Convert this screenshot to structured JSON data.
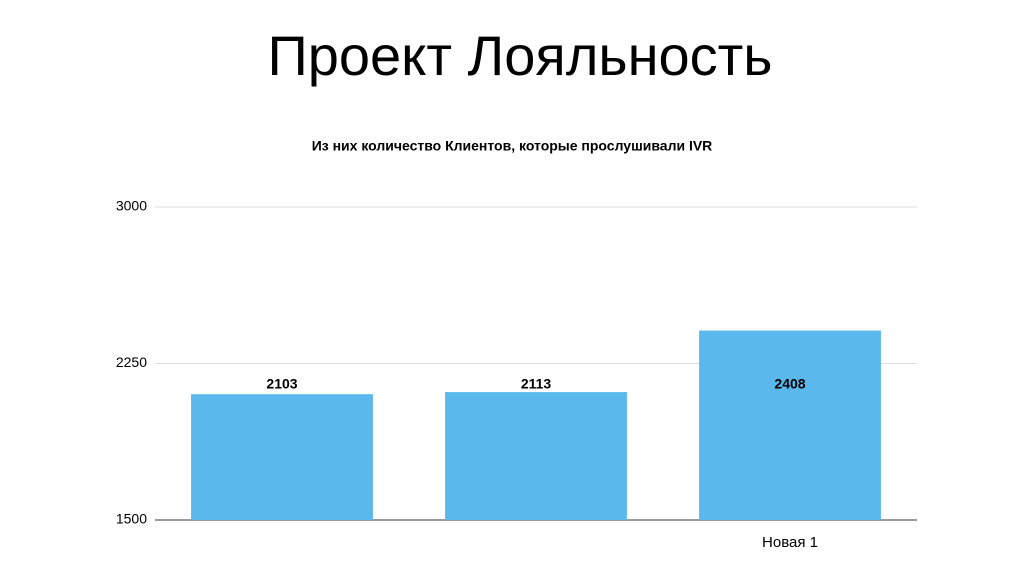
{
  "title": "Проект Лояльность",
  "chart_data": {
    "type": "bar",
    "title": "Из них количество Клиентов, которые прослушивали IVR",
    "categories": [
      null,
      null,
      "Новая 1"
    ],
    "values": [
      2103,
      2113,
      2408
    ],
    "color": "#5bb8ec",
    "ylim": [
      1500,
      3000
    ],
    "yticks": [
      1500,
      2250,
      3000
    ],
    "grid": true
  }
}
